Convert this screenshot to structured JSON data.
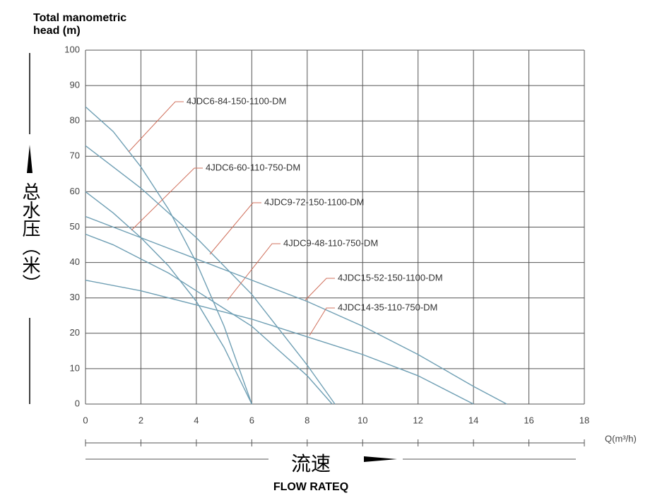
{
  "chart_data": {
    "type": "line",
    "y_label_lines": [
      "Total manometric",
      "head (m)"
    ],
    "y_label_cn": "总水压（米）",
    "x_label": "Q(m³/h)",
    "x_label_cn": "流速",
    "x_label_en": "FLOW RATEQ",
    "xlim": [
      0,
      18
    ],
    "xticks": [
      0,
      2,
      4,
      6,
      8,
      10,
      12,
      14,
      16,
      18
    ],
    "ylim": [
      0,
      100
    ],
    "yticks": [
      0,
      10,
      20,
      30,
      40,
      50,
      60,
      70,
      80,
      90,
      100
    ],
    "grid": true,
    "color": "#6f9fb4",
    "series": [
      {
        "name": "4JDC6-84-150-1100-DM",
        "x": [
          0,
          1,
          2,
          3,
          4,
          5,
          6
        ],
        "values": [
          84,
          77,
          67,
          55,
          40,
          22,
          0
        ]
      },
      {
        "name": "4JDC6-60-110-750-DM",
        "x": [
          0,
          1,
          2,
          3,
          4,
          5,
          6
        ],
        "values": [
          60,
          54,
          47,
          39,
          29,
          16,
          0
        ]
      },
      {
        "name": "4JDC9-72-150-1100-DM",
        "x": [
          0,
          1,
          2,
          3,
          4,
          5,
          6,
          7,
          8,
          9
        ],
        "values": [
          73,
          67,
          61,
          54,
          47,
          39,
          31,
          21,
          11,
          0
        ]
      },
      {
        "name": "4JDC9-48-110-750-DM",
        "x": [
          0,
          1,
          2,
          3,
          4,
          5,
          6,
          7,
          8,
          8.9
        ],
        "values": [
          48,
          45,
          41,
          37,
          32,
          27,
          22,
          15,
          8,
          0
        ]
      },
      {
        "name": "4JDC15-52-150-1100-DM",
        "x": [
          0,
          2,
          4,
          6,
          8,
          10,
          12,
          14,
          15.2
        ],
        "values": [
          53,
          47,
          41,
          35,
          29,
          22,
          14,
          5,
          0
        ]
      },
      {
        "name": "4JDC14-35-110-750-DM",
        "x": [
          0,
          2,
          4,
          6,
          8,
          10,
          12,
          14
        ],
        "values": [
          35,
          32,
          28,
          24,
          19,
          14,
          8,
          0
        ]
      }
    ]
  }
}
